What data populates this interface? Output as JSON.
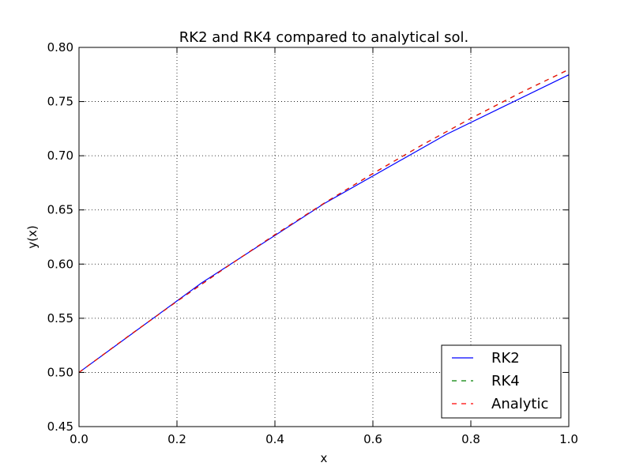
{
  "chart_data": {
    "type": "line",
    "title": "RK2 and RK4 compared to analytical sol.",
    "xlabel": "x",
    "ylabel": "y(x)",
    "xlim": [
      0.0,
      1.0
    ],
    "ylim": [
      0.45,
      0.8
    ],
    "xticks": [
      "0.0",
      "0.2",
      "0.4",
      "0.6",
      "0.8",
      "1.0"
    ],
    "yticks": [
      "0.45",
      "0.50",
      "0.55",
      "0.60",
      "0.65",
      "0.70",
      "0.75",
      "0.80"
    ],
    "grid": true,
    "legend_position": "lower-right",
    "series": [
      {
        "name": "RK2",
        "color": "#0000ff",
        "style": "solid",
        "x": [
          0.0,
          0.25,
          0.5,
          0.75,
          1.0
        ],
        "y": [
          0.5,
          0.5825,
          0.6557,
          0.7197,
          0.7747
        ]
      },
      {
        "name": "RK4",
        "color": "#008000",
        "style": "dashed",
        "x": [
          0.0,
          0.1,
          0.2,
          0.3,
          0.4,
          0.5,
          0.6,
          0.7,
          0.8,
          0.9,
          1.0
        ],
        "y": [
          0.5,
          0.5332,
          0.5656,
          0.5969,
          0.6271,
          0.6561,
          0.6836,
          0.7098,
          0.7345,
          0.7578,
          0.7796
        ]
      },
      {
        "name": "Analytic",
        "color": "#ff0000",
        "style": "dashed",
        "x": [
          0.0,
          0.1,
          0.2,
          0.3,
          0.4,
          0.5,
          0.6,
          0.7,
          0.8,
          0.9,
          1.0
        ],
        "y": [
          0.5,
          0.5332,
          0.5656,
          0.5969,
          0.6271,
          0.6561,
          0.6836,
          0.7098,
          0.7345,
          0.7578,
          0.7796
        ]
      }
    ]
  }
}
